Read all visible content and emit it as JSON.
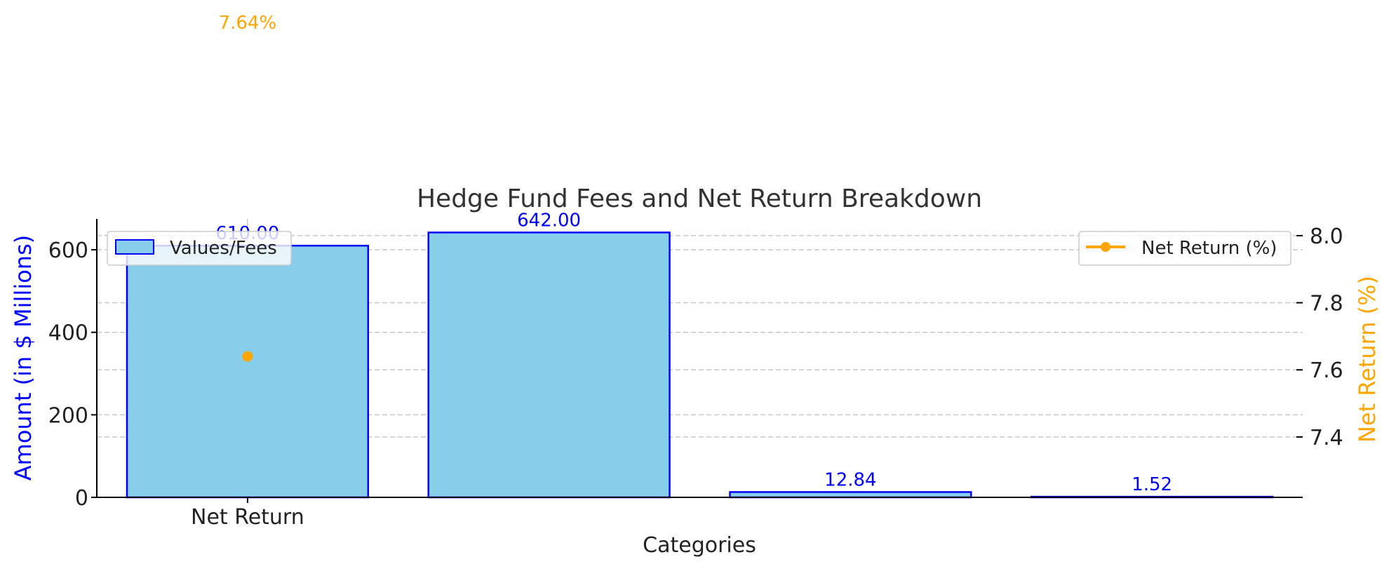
{
  "chart_data": {
    "type": "bar",
    "title": "Hedge Fund Fees and Net Return Breakdown",
    "xlabel": "Categories",
    "ylabel": "Amount (in $ Millions)",
    "ylabel_right": "Net Return (%)",
    "categories": [
      "Net Return",
      "",
      "",
      ""
    ],
    "values": [
      610.0,
      642.0,
      12.84,
      1.52
    ],
    "value_labels": [
      "610.00",
      "642.00",
      "12.84",
      "1.52"
    ],
    "ylim": [
      0,
      675
    ],
    "yticks": [
      "0",
      "200",
      "400",
      "600"
    ],
    "ylim_right": [
      7.22,
      8.05
    ],
    "yticks_right": [
      "7.4",
      "7.6",
      "7.8",
      "8.0"
    ],
    "grid": true,
    "series": [
      {
        "name": "Values/Fees",
        "type": "bar",
        "values": [
          610.0,
          642.0,
          12.84,
          1.52
        ],
        "color": "#87CEEB",
        "edge_color": "#0000FF",
        "legend_position": "upper-left"
      },
      {
        "name": "Net Return (%)",
        "type": "line",
        "x": [
          "Net Return"
        ],
        "values": [
          7.64
        ],
        "color": "#FFA500",
        "legend_position": "upper-right"
      }
    ],
    "annotations": [
      "7.64%"
    ],
    "colors": {
      "bar_fill": "#87CEEB",
      "bar_edge": "#0000FF",
      "left_axis_label": "#0000FF",
      "right_axis_label": "#FFA500",
      "value_label": "#0000FF"
    }
  }
}
